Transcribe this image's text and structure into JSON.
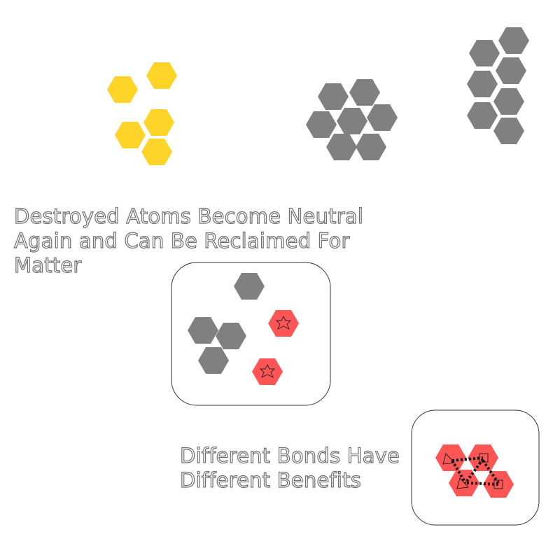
{
  "captions": {
    "destroyed_line1": "Destroyed Atoms Become Neutral",
    "destroyed_line2": "Again and Can Be Reclaimed For",
    "destroyed_line3": "Matter",
    "bonds_line1": "Different Bonds Have",
    "bonds_line2": "Different Benefits"
  },
  "colors": {
    "yellow_atom": "#ffd428",
    "gray_atom": "#808080",
    "red_atom": "#ff5555",
    "panel_border": "#333333",
    "text_outline": "#6f6f6f"
  },
  "icons": {
    "destroyed_atom_mark": "star-outline-icon",
    "bond_marks": [
      "triangle-outline-icon",
      "square-outline-icon"
    ]
  }
}
